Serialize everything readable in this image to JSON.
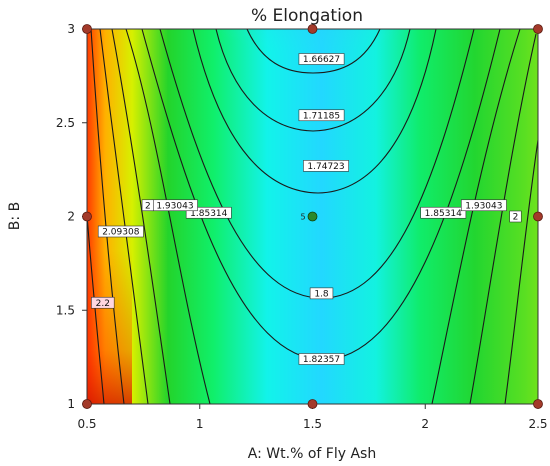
{
  "chart_data": {
    "type": "contour",
    "title": "% Elongation",
    "xlabel": "A: Wt.% of Fly Ash",
    "ylabel": "B: B",
    "xlim": [
      0.5,
      2.5
    ],
    "ylim": [
      1,
      3
    ],
    "xticks": [
      "0.5",
      "1",
      "1.5",
      "2",
      "2.5"
    ],
    "yticks": [
      "1",
      "1.5",
      "2",
      "2.5",
      "3"
    ],
    "xtick_values": [
      0.5,
      1,
      1.5,
      2,
      2.5
    ],
    "ytick_values": [
      1,
      1.5,
      2,
      2.5,
      3
    ],
    "contour_labels": [
      {
        "text": "1.66627",
        "x": 1.54,
        "y": 2.84
      },
      {
        "text": "1.71185",
        "x": 1.54,
        "y": 2.54
      },
      {
        "text": "1.74723",
        "x": 1.56,
        "y": 2.27
      },
      {
        "text": "1.8",
        "x": 1.54,
        "y": 1.59
      },
      {
        "text": "1.82357",
        "x": 1.54,
        "y": 1.24
      },
      {
        "text": "1.85314",
        "x": 1.04,
        "y": 2.02
      },
      {
        "text": "1.85314",
        "x": 2.08,
        "y": 2.02
      },
      {
        "text": "1.93043",
        "x": 0.89,
        "y": 2.06
      },
      {
        "text": "1.93043",
        "x": 2.26,
        "y": 2.06
      },
      {
        "text": "2",
        "x": 0.77,
        "y": 2.06
      },
      {
        "text": "2",
        "x": 2.4,
        "y": 2.0
      },
      {
        "text": "2.09308",
        "x": 0.65,
        "y": 1.92
      },
      {
        "text": "2.2",
        "x": 0.57,
        "y": 1.54
      }
    ],
    "design_points": [
      {
        "x": 0.5,
        "y": 1
      },
      {
        "x": 1.5,
        "y": 1
      },
      {
        "x": 2.5,
        "y": 1
      },
      {
        "x": 0.5,
        "y": 2
      },
      {
        "x": 2.5,
        "y": 2
      },
      {
        "x": 0.5,
        "y": 3
      },
      {
        "x": 1.5,
        "y": 3
      },
      {
        "x": 2.5,
        "y": 3
      }
    ],
    "center_point": {
      "x": 1.5,
      "y": 2,
      "replicates": "5"
    },
    "colormap": [
      "#1c3fe8",
      "#2fd9f0",
      "#1fdc2a",
      "#f2e81c",
      "#ff2a00"
    ],
    "grid": false
  }
}
